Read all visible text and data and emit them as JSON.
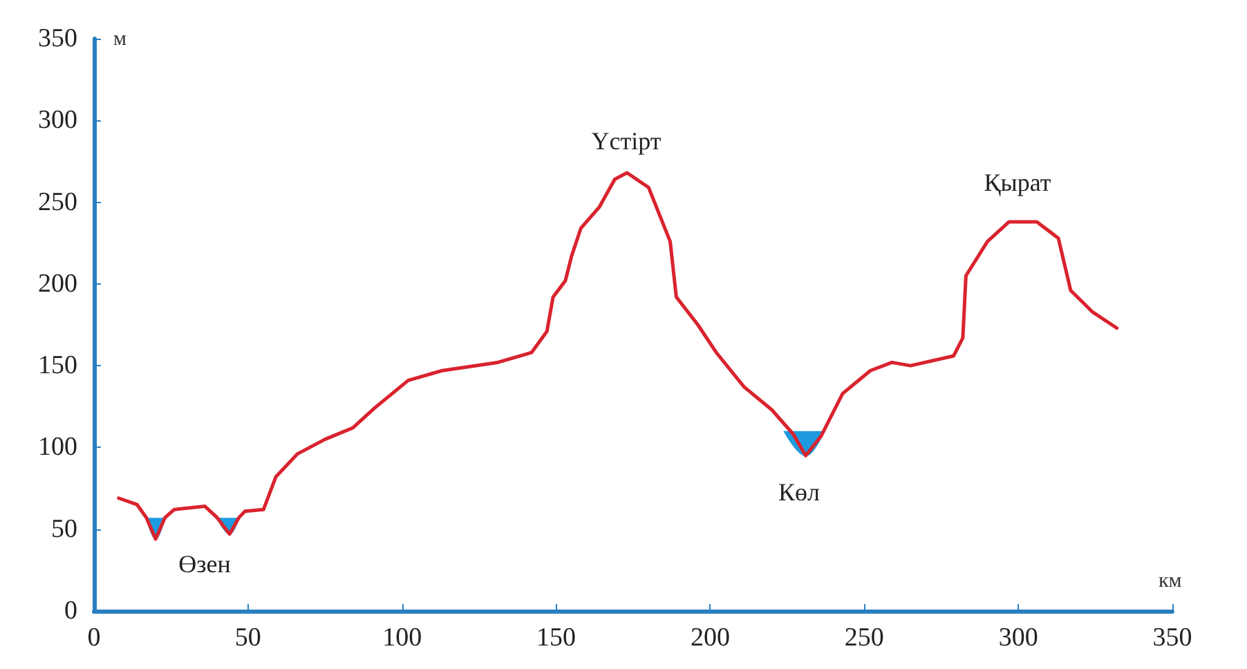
{
  "chart_data": {
    "type": "line",
    "xlabel": "км",
    "ylabel": "м",
    "xlim": [
      0,
      350
    ],
    "xticks": [
      0,
      50,
      100,
      150,
      200,
      250,
      300,
      350
    ],
    "ylim": [
      0,
      350
    ],
    "yticks": [
      0,
      50,
      100,
      150,
      200,
      250,
      300,
      350
    ],
    "grid": false,
    "marker": "none",
    "line_style": "solid",
    "series": [
      {
        "color": "#d9232e",
        "x": [
          8,
          14,
          17,
          20,
          23,
          26,
          36,
          40,
          44,
          47,
          49,
          55,
          59,
          66,
          75,
          84,
          91,
          102,
          113,
          131,
          142,
          147,
          149,
          153,
          155,
          158,
          164,
          169,
          173,
          180,
          187,
          189,
          196,
          202,
          211,
          220,
          227,
          231,
          236,
          243,
          252,
          259,
          265,
          279,
          282,
          283,
          290,
          297,
          306,
          313,
          317,
          324,
          332
        ],
        "values": [
          69,
          65,
          57,
          44,
          57,
          62,
          64,
          57,
          47,
          57,
          61,
          62,
          82,
          96,
          105,
          112,
          124,
          141,
          147,
          152,
          158,
          171,
          192,
          202,
          217,
          234,
          247,
          264,
          268,
          259,
          226,
          192,
          175,
          158,
          137,
          123,
          108,
          95,
          107,
          133,
          147,
          152,
          150,
          156,
          167,
          205,
          226,
          238,
          238,
          228,
          196,
          183,
          173
        ]
      },
      {
        "type": "area",
        "color": "#1e9be0",
        "x": [
          17,
          20,
          23
        ],
        "values": [
          57,
          44,
          57
        ]
      },
      {
        "type": "area",
        "color": "#1e9be0",
        "x": [
          40,
          44,
          47
        ],
        "values": [
          57,
          47,
          57
        ]
      },
      {
        "type": "area",
        "color": "#1e9be0",
        "x": [
          224,
          231,
          237
        ],
        "values": [
          110,
          95,
          110
        ]
      }
    ],
    "annotations": [
      "Өзен",
      "Үстірт",
      "Көл",
      "Қырат"
    ]
  }
}
